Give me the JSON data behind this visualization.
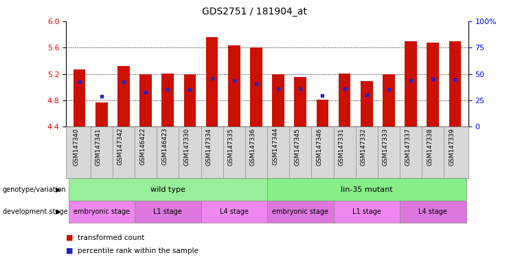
{
  "title": "GDS2751 / 181904_at",
  "samples": [
    "GSM147340",
    "GSM147341",
    "GSM147342",
    "GSM146422",
    "GSM146423",
    "GSM147330",
    "GSM147334",
    "GSM147335",
    "GSM147336",
    "GSM147344",
    "GSM147345",
    "GSM147346",
    "GSM147331",
    "GSM147332",
    "GSM147333",
    "GSM147337",
    "GSM147338",
    "GSM147339"
  ],
  "bar_values": [
    5.27,
    4.77,
    5.32,
    5.2,
    5.21,
    5.2,
    5.76,
    5.63,
    5.6,
    5.19,
    5.15,
    4.81,
    5.21,
    5.09,
    5.2,
    5.7,
    5.67,
    5.7
  ],
  "percentile_values": [
    5.08,
    4.86,
    5.08,
    4.92,
    4.97,
    4.97,
    5.13,
    5.1,
    5.05,
    4.98,
    4.98,
    4.87,
    4.98,
    4.88,
    4.97,
    5.1,
    5.12,
    5.11
  ],
  "ymin": 4.4,
  "ymax": 6.0,
  "yticks": [
    4.4,
    4.8,
    5.2,
    5.6,
    6.0
  ],
  "right_yticklabels": [
    "0",
    "25",
    "50",
    "75",
    "100%"
  ],
  "bar_color": "#cc1100",
  "dot_color": "#2222cc",
  "background_color": "#ffffff",
  "genotype_groups": [
    {
      "label": "wild type",
      "start": 0,
      "end": 9,
      "color": "#99ee99"
    },
    {
      "label": "lin-35 mutant",
      "start": 9,
      "end": 18,
      "color": "#88ee88"
    }
  ],
  "stage_groups": [
    {
      "label": "embryonic stage",
      "start": 0,
      "end": 3,
      "color": "#ee88ee"
    },
    {
      "label": "L1 stage",
      "start": 3,
      "end": 6,
      "color": "#dd77dd"
    },
    {
      "label": "L4 stage",
      "start": 6,
      "end": 9,
      "color": "#ee88ee"
    },
    {
      "label": "embryonic stage",
      "start": 9,
      "end": 12,
      "color": "#dd77dd"
    },
    {
      "label": "L1 stage",
      "start": 12,
      "end": 15,
      "color": "#ee88ee"
    },
    {
      "label": "L4 stage",
      "start": 15,
      "end": 18,
      "color": "#dd77dd"
    }
  ],
  "legend_items": [
    {
      "label": "transformed count",
      "color": "#cc1100"
    },
    {
      "label": "percentile rank within the sample",
      "color": "#2222cc"
    }
  ]
}
